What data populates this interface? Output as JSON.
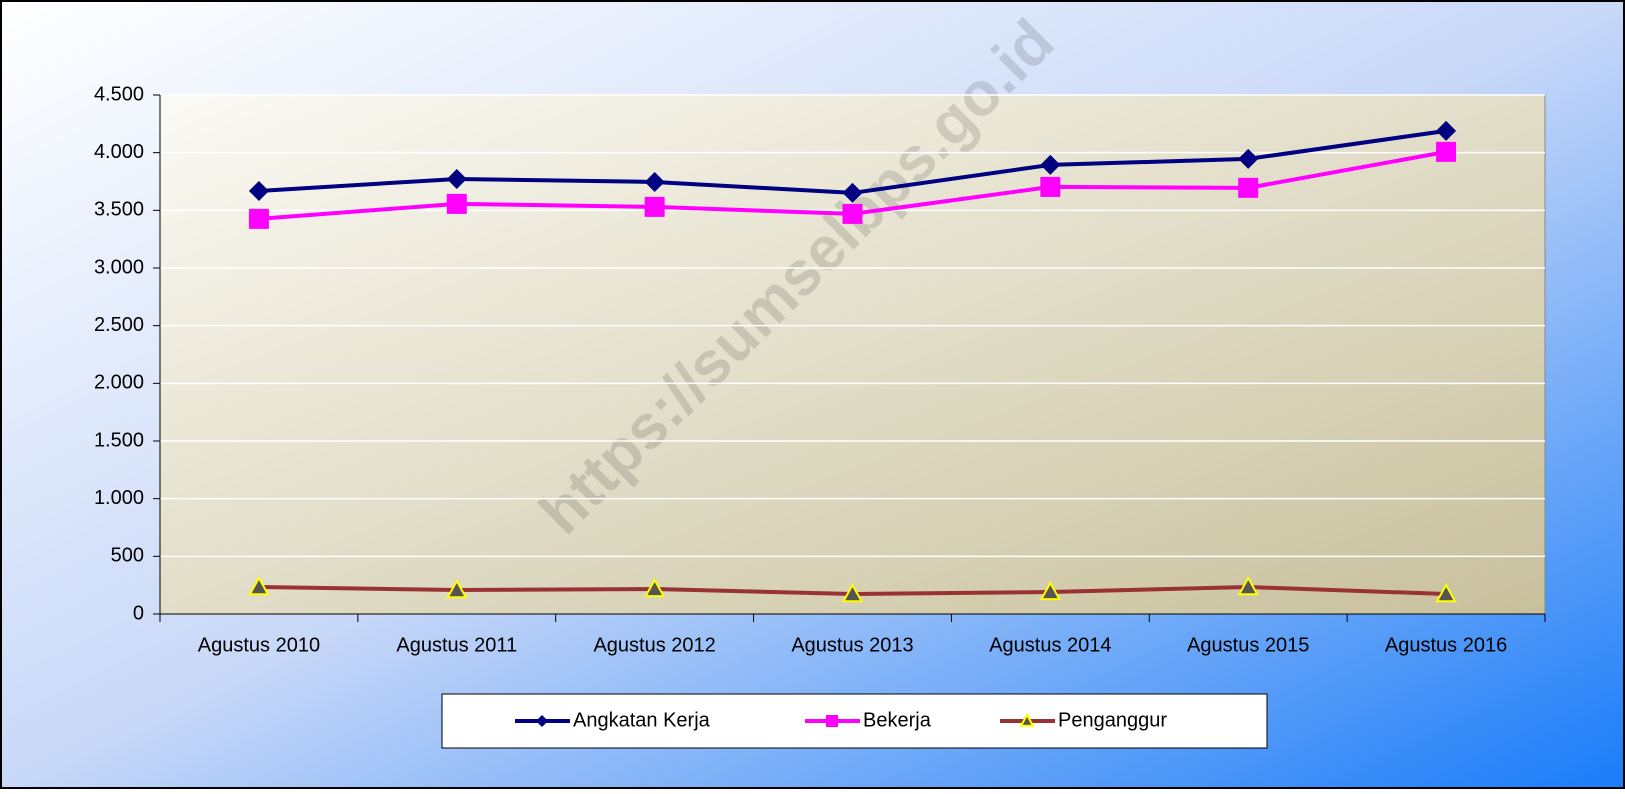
{
  "chart_data": {
    "type": "line",
    "watermark": "https://sumselbps.go.id",
    "categories": [
      "Agustus 2010",
      "Agustus 2011",
      "Agustus 2012",
      "Agustus 2013",
      "Agustus 2014",
      "Agustus 2015",
      "Agustus 2016"
    ],
    "series": [
      {
        "name": "Angkatan Kerja",
        "color": "#000080",
        "marker": "diamond",
        "marker_color": "#000080",
        "values": [
          3668,
          3772,
          3746,
          3651,
          3894,
          3946,
          4189
        ]
      },
      {
        "name": "Bekerja",
        "color": "#ff00ff",
        "marker": "square",
        "marker_color": "#ff00ff",
        "values": [
          3426,
          3556,
          3530,
          3469,
          3703,
          3695,
          4007
        ]
      },
      {
        "name": "Penganggur",
        "color": "#993333",
        "marker": "triangle",
        "marker_color": "#555555",
        "values": [
          234,
          208,
          217,
          173,
          191,
          234,
          173
        ]
      }
    ],
    "ylim": [
      0,
      4500
    ],
    "yticks": [
      0,
      500,
      {
        "value": 1000,
        "label": "1.000"
      },
      {
        "value": 1500,
        "label": "1.500"
      },
      {
        "value": 2000,
        "label": "2.000"
      },
      {
        "value": 2500,
        "label": "2.500"
      },
      {
        "value": 3000,
        "label": "3.000"
      },
      {
        "value": 3500,
        "label": "3.500"
      },
      {
        "value": 4000,
        "label": "4.000"
      },
      {
        "value": 4500,
        "label": "4.500"
      }
    ],
    "grid": true,
    "legend": "bottom"
  }
}
